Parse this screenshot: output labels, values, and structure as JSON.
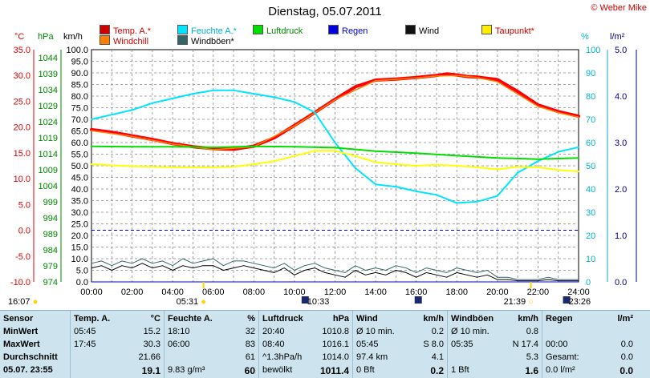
{
  "header": {
    "title": "Dienstag, 05.07.2011",
    "credit": "© Weber Mike"
  },
  "legend": [
    {
      "label": "Temp. A.*",
      "color": "#ff0000"
    },
    {
      "label": "Feuchte A.*",
      "color": "#00e5ff"
    },
    {
      "label": "Luftdruck",
      "color": "#00dd00"
    },
    {
      "label": "Regen",
      "color": "#0000ff"
    },
    {
      "label": "Wind",
      "color": "#000000"
    },
    {
      "label": "Taupunkt*",
      "color": "#ffff00"
    },
    {
      "label": "Windchill",
      "color": "#ff8000"
    },
    {
      "label": "Windböen*",
      "color": "#336666"
    }
  ],
  "axis_heads": {
    "temp": "°C",
    "press": "hPa",
    "wind": "km/h",
    "hum": "%",
    "rain": "l/m²"
  },
  "chart_data": {
    "type": "line",
    "x_unit": "hour",
    "x_ticks": [
      "00:00",
      "02:00",
      "04:00",
      "06:00",
      "08:00",
      "10:00",
      "12:00",
      "14:00",
      "16:00",
      "18:00",
      "20:00",
      "22:00",
      "24:00"
    ],
    "xlim": [
      0,
      24
    ],
    "axes": {
      "temp": {
        "min": -10,
        "max": 35,
        "ticks": [
          "35.0",
          "30.0",
          "25.0",
          "20.0",
          "15.0",
          "10.0",
          "5.0",
          "0.0",
          "-5.0",
          "-10.0"
        ],
        "color": "#dd0000"
      },
      "press": {
        "min": 974,
        "max": 1046.5,
        "ticks": [
          "1044",
          "1039",
          "1034",
          "1029",
          "1024",
          "1019",
          "1014",
          "1009",
          "1004",
          "999",
          "994",
          "989",
          "984",
          "979",
          "974"
        ],
        "color": "#008800"
      },
      "wind": {
        "min": 0,
        "max": 100,
        "ticks": [
          "100.0",
          "95.0",
          "90.0",
          "85.0",
          "80.0",
          "75.0",
          "70.0",
          "65.0",
          "60.0",
          "55.0",
          "50.0",
          "45.0",
          "40.0",
          "35.0",
          "30.0",
          "25.0",
          "20.0",
          "15.0",
          "10.0",
          "5.0",
          "0.0"
        ],
        "color": "#000000"
      },
      "hum": {
        "min": 0,
        "max": 100,
        "ticks": [
          "100",
          "90",
          "80",
          "70",
          "60",
          "50",
          "40",
          "30",
          "20",
          "10",
          "0"
        ],
        "color": "#00b0d0"
      },
      "rain": {
        "min": 0,
        "max": 5,
        "ticks": [
          "5.0",
          "4.0",
          "3.0",
          "2.0",
          "1.0",
          "0.0"
        ],
        "color": "#000088"
      }
    },
    "series": [
      {
        "name": "Temp. A.*",
        "axis": "temp",
        "color": "#ff0000",
        "width": 4,
        "x": [
          0,
          1,
          2,
          3,
          4,
          5,
          6,
          7,
          8,
          9,
          10,
          11,
          12,
          13,
          14,
          15,
          16,
          17,
          17.5,
          18,
          18.5,
          19,
          20,
          21,
          22,
          23,
          24
        ],
        "y": [
          19.5,
          19.0,
          18.3,
          17.6,
          16.8,
          16.2,
          15.8,
          15.7,
          16.3,
          17.9,
          20.3,
          22.8,
          25.4,
          27.8,
          29.1,
          29.3,
          29.6,
          30.0,
          30.3,
          30.1,
          29.8,
          29.7,
          29.2,
          26.9,
          24.3,
          23.0,
          22.1
        ]
      },
      {
        "name": "Windchill",
        "axis": "temp",
        "color": "#ff8000",
        "width": 1.5,
        "x": [
          0,
          2,
          4,
          6,
          8,
          10,
          12,
          14,
          16,
          17,
          18,
          19,
          20,
          21,
          22,
          23,
          24
        ],
        "y": [
          19.3,
          18.2,
          16.7,
          15.6,
          16.2,
          20.2,
          25.3,
          29.0,
          29.5,
          29.9,
          30.0,
          29.6,
          28.8,
          26.4,
          24.0,
          22.8,
          21.9
        ]
      },
      {
        "name": "Feuchte A.*",
        "axis": "hum",
        "color": "#00e5ff",
        "width": 2,
        "x": [
          0,
          1,
          2,
          3,
          4,
          5,
          6,
          7,
          8,
          9,
          10,
          11,
          12,
          13,
          14,
          15,
          16,
          17,
          18,
          19,
          20,
          21,
          22,
          23,
          24
        ],
        "y": [
          70,
          72,
          74,
          77,
          79,
          81,
          82.5,
          82.5,
          81,
          79.5,
          77.5,
          73,
          60,
          49,
          42,
          41,
          39,
          37.5,
          34,
          34.5,
          37,
          47,
          52,
          56,
          58
        ]
      },
      {
        "name": "Luftdruck",
        "axis": "press",
        "color": "#00dd00",
        "width": 2,
        "x": [
          0,
          2,
          4,
          6,
          8,
          10,
          12,
          14,
          16,
          18,
          20,
          22,
          24
        ],
        "y": [
          1016.3,
          1016.2,
          1016.2,
          1016.0,
          1016.3,
          1016.2,
          1015.9,
          1014.8,
          1014.2,
          1013.4,
          1012.7,
          1012.3,
          1012.7
        ]
      },
      {
        "name": "Taupunkt*",
        "axis": "temp",
        "color": "#ffff00",
        "width": 2,
        "x": [
          0,
          1,
          2,
          3,
          4,
          5,
          6,
          7,
          8,
          9,
          10,
          11,
          12,
          13,
          14,
          15,
          16,
          17,
          18,
          19,
          20,
          21,
          22,
          23,
          24
        ],
        "y": [
          12.8,
          12.6,
          12.4,
          12.3,
          12.2,
          12.2,
          12.2,
          12.3,
          12.8,
          13.4,
          14.4,
          15.4,
          15.4,
          14.4,
          13.2,
          12.8,
          12.5,
          12.7,
          12.5,
          12.2,
          11.8,
          12.3,
          12.2,
          11.7,
          11.4
        ]
      },
      {
        "name": "Wind",
        "axis": "wind",
        "color": "#000000",
        "width": 1,
        "x": [
          0,
          0.5,
          1,
          1.5,
          2,
          2.5,
          3,
          3.5,
          4,
          4.5,
          5,
          5.5,
          6,
          6.5,
          7,
          7.5,
          8,
          8.5,
          9,
          9.5,
          10,
          10.5,
          11,
          11.5,
          12,
          12.5,
          13,
          13.5,
          14,
          14.5,
          15,
          15.5,
          16,
          16.5,
          17,
          17.5,
          18,
          18.5,
          19,
          19.5,
          20,
          20.5,
          21,
          21.5,
          22,
          22.5,
          23,
          23.5,
          24
        ],
        "y": [
          6,
          7,
          5,
          7,
          6,
          8,
          6,
          7,
          5,
          7,
          6,
          7,
          7,
          5,
          6,
          7,
          6,
          5,
          4,
          6,
          3,
          5,
          6,
          4,
          3,
          2,
          5,
          3,
          4,
          3,
          5,
          4,
          2,
          4,
          3,
          2,
          4,
          3,
          2,
          3,
          1,
          1,
          0.5,
          0.5,
          0.5,
          1,
          0.5,
          0.5,
          0.5
        ]
      },
      {
        "name": "Windböen*",
        "axis": "wind",
        "color": "#336666",
        "width": 1,
        "x": [
          0,
          0.5,
          1,
          1.5,
          2,
          2.5,
          3,
          3.5,
          4,
          4.5,
          5,
          5.5,
          6,
          6.5,
          7,
          7.5,
          8,
          8.5,
          9,
          9.5,
          10,
          10.5,
          11,
          11.5,
          12,
          12.5,
          13,
          13.5,
          14,
          14.5,
          15,
          15.5,
          16,
          16.5,
          17,
          17.5,
          18,
          18.5,
          19,
          19.5,
          20,
          20.5,
          21,
          21.5,
          22,
          22.5,
          23,
          23.5,
          24
        ],
        "y": [
          8,
          9,
          7,
          9,
          8,
          10,
          8,
          9,
          7,
          10,
          8,
          9,
          10,
          7,
          9,
          9,
          8,
          7,
          6,
          8,
          5,
          7,
          8,
          6,
          5,
          4,
          7,
          5,
          6,
          5,
          7,
          6,
          4,
          6,
          5,
          4,
          6,
          5,
          4,
          5,
          2,
          2,
          1,
          1,
          1,
          2,
          1,
          1,
          1
        ]
      },
      {
        "name": "Regen",
        "axis": "rain",
        "color": "#0000ff",
        "width": 1,
        "x": [
          0,
          24
        ],
        "y": [
          0,
          0
        ]
      }
    ],
    "reference_line": {
      "axis": "temp",
      "value": 0,
      "color": "#0000ff"
    },
    "events": [
      {
        "label": "16:07",
        "hour": 16.12,
        "kind": "moonset"
      },
      {
        "label": "05:31",
        "hour": 5.52,
        "kind": "sunrise"
      },
      {
        "label": "10:33",
        "hour": 10.55,
        "kind": "moonrise"
      },
      {
        "label": "21:39",
        "hour": 21.65,
        "kind": "sunset"
      },
      {
        "label": "23:26",
        "hour": 23.43,
        "kind": "moonset2"
      }
    ]
  },
  "table": {
    "col_sensor": {
      "head": "Sensor",
      "rows": [
        "MinWert",
        "MaxWert",
        "Durchschnitt",
        "05.07. 23:55"
      ]
    },
    "col_temp": {
      "head": "Temp. A.",
      "unit": "°C",
      "rows": [
        [
          "05:45",
          "15.2"
        ],
        [
          "17:45",
          "30.3"
        ],
        [
          "",
          "21.66"
        ],
        [
          "",
          "19.1"
        ]
      ]
    },
    "col_hum": {
      "head": "Feuchte A.",
      "unit": "%",
      "rows": [
        [
          "18:10",
          "32"
        ],
        [
          "06:00",
          "83"
        ],
        [
          "",
          "61"
        ],
        [
          "9.83 g/m³",
          "60"
        ]
      ]
    },
    "col_press": {
      "head": "Luftdruck",
      "unit": "hPa",
      "rows": [
        [
          "20:40",
          "1010.8"
        ],
        [
          "08:40",
          "1016.1"
        ],
        [
          "^1.3hPa/h",
          "1014.0"
        ],
        [
          "bewölkt",
          "1011.4"
        ]
      ]
    },
    "col_wind": {
      "head": "Wind",
      "unit": "km/h",
      "rows": [
        [
          "Ø 10 min.",
          "0.2"
        ],
        [
          "05:45",
          "S 8.0"
        ],
        [
          "97.4 km",
          "4.1"
        ],
        [
          "0 Bft",
          "0.2"
        ]
      ]
    },
    "col_gust": {
      "head": "Windböen",
      "unit": "km/h",
      "rows": [
        [
          "Ø 10 min.",
          "0.8"
        ],
        [
          "05:35",
          "N 17.4"
        ],
        [
          "",
          "5.3"
        ],
        [
          "1 Bft",
          "1.6"
        ]
      ]
    },
    "col_rain": {
      "head": "Regen",
      "unit": "l/m²",
      "rows": [
        [
          "",
          ""
        ],
        [
          "00:00",
          "0.0"
        ],
        [
          "Gesamt:",
          "0.0"
        ],
        [
          "0.0 l/m²",
          "0.0"
        ]
      ]
    }
  }
}
